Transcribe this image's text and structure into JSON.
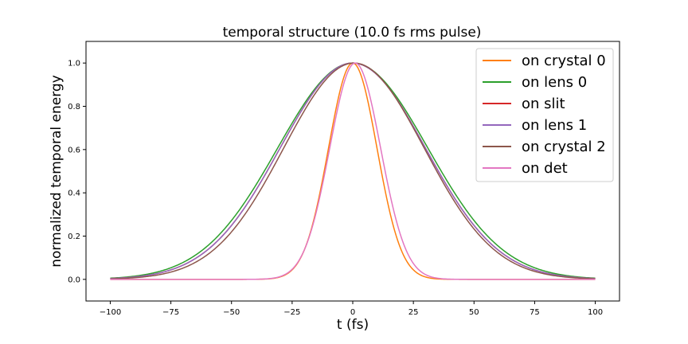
{
  "chart_data": {
    "type": "line",
    "title": "temporal structure (10.0 fs rms pulse)",
    "xlabel": "t (fs)",
    "ylabel": "normalized temporal energy",
    "xlim": [
      -110,
      110
    ],
    "ylim": [
      -0.1,
      1.1
    ],
    "xticks": [
      -100,
      -75,
      -50,
      -25,
      0,
      25,
      50,
      75,
      100
    ],
    "xtick_labels": [
      "−100",
      "−75",
      "−50",
      "−25",
      "0",
      "25",
      "50",
      "75",
      "100"
    ],
    "yticks": [
      0.0,
      0.2,
      0.4,
      0.6,
      0.8,
      1.0
    ],
    "ytick_labels": [
      "0.0",
      "0.2",
      "0.4",
      "0.6",
      "0.8",
      "1.0"
    ],
    "grid": false,
    "legend_position": "top-right",
    "x_range": [
      -100,
      100
    ],
    "series": [
      {
        "name": "on crystal 0",
        "color": "#ff7f0e",
        "profile": "gaussian",
        "center": 0,
        "rms_width": 10.0
      },
      {
        "name": "on lens 0",
        "color": "#2ca02c",
        "profile": "gaussian",
        "center": 0,
        "rms_width": 31.0
      },
      {
        "name": "on slit",
        "color": "#d62728",
        "profile": "gaussian",
        "center": 0,
        "rms_width": 30.0
      },
      {
        "name": "on lens 1",
        "color": "#9467bd",
        "profile": "gaussian",
        "center": 0,
        "rms_width": 30.0
      },
      {
        "name": "on crystal 2",
        "color": "#8c564b",
        "profile": "gaussian",
        "center": 0.5,
        "rms_width": 29.0
      },
      {
        "name": "on det",
        "color": "#e377c2",
        "profile": "gaussian",
        "center": 1.0,
        "rms_width": 10.5
      }
    ]
  }
}
